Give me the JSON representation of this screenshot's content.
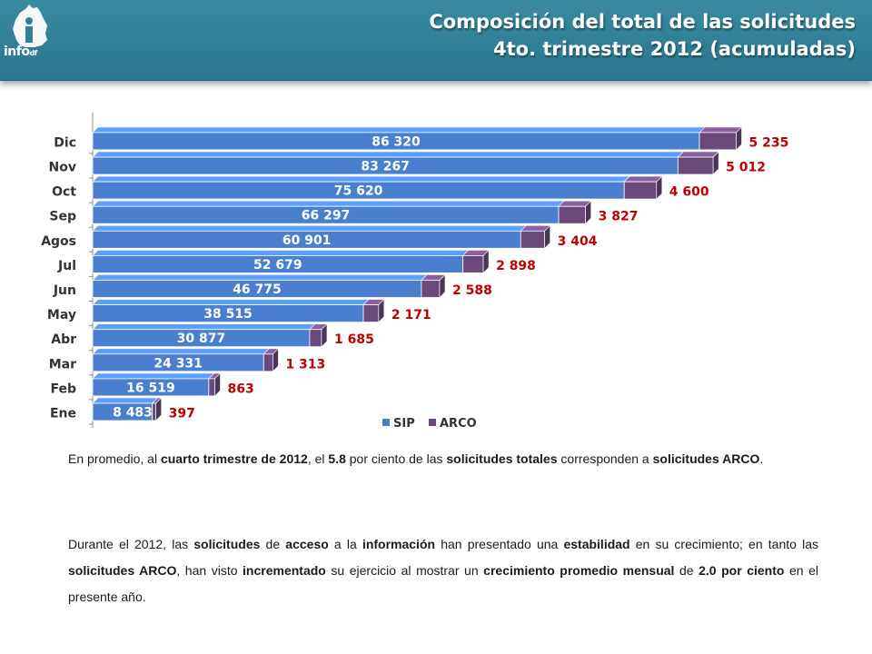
{
  "header": {
    "logo_label": "info df",
    "title_line1": "Composición del total de las solicitudes",
    "title_line2": "4to. trimestre 2012 (acumuladas)"
  },
  "chart_data": {
    "type": "bar",
    "orientation": "horizontal",
    "stacked": true,
    "categories": [
      "Ene",
      "Feb",
      "Mar",
      "Abr",
      "May",
      "Jun",
      "Jul",
      "Agos",
      "Sep",
      "Oct",
      "Nov",
      "Dic"
    ],
    "series": [
      {
        "name": "SIP",
        "color": "#4a7fd0",
        "values": [
          8483,
          16519,
          24331,
          30877,
          38515,
          46775,
          52679,
          60901,
          66297,
          75620,
          83267,
          86320
        ],
        "labels": [
          "8 483",
          "16 519",
          "24 331",
          "30 877",
          "38 515",
          "46 775",
          "52 679",
          "60 901",
          "66 297",
          "75 620",
          "83 267",
          "86 320"
        ]
      },
      {
        "name": "ARCO",
        "color": "#6a4a7c",
        "values": [
          397,
          863,
          1313,
          1685,
          2171,
          2588,
          2898,
          3404,
          3827,
          4600,
          5012,
          5235
        ],
        "labels": [
          "397",
          "863",
          "1 313",
          "1 685",
          "2 171",
          "2 588",
          "2 898",
          "3 404",
          "3 827",
          "4 600",
          "5 012",
          "5 235"
        ]
      }
    ],
    "label_color": "#c00000",
    "legend": "bottom",
    "style": "3d-bar"
  },
  "paragraphs": {
    "p1": [
      {
        "t": "En promedio, al ",
        "b": false
      },
      {
        "t": "cuarto trimestre de 2012",
        "b": true
      },
      {
        "t": ", el ",
        "b": false
      },
      {
        "t": "5.8",
        "b": true
      },
      {
        "t": " por ciento de las ",
        "b": false
      },
      {
        "t": "solicitudes totales",
        "b": true
      },
      {
        "t": " corresponden a ",
        "b": false
      },
      {
        "t": "solicitudes ARCO",
        "b": true
      },
      {
        "t": ".",
        "b": false
      }
    ],
    "p2": [
      {
        "t": "Durante el 2012, las ",
        "b": false
      },
      {
        "t": "solicitudes",
        "b": true
      },
      {
        "t": " de ",
        "b": false
      },
      {
        "t": "acceso",
        "b": true
      },
      {
        "t": " a la ",
        "b": false
      },
      {
        "t": "información",
        "b": true
      },
      {
        "t": " han presentado una ",
        "b": false
      },
      {
        "t": "estabilidad",
        "b": true
      },
      {
        "t": " en su crecimiento; en tanto las ",
        "b": false
      },
      {
        "t": "solicitudes ARCO",
        "b": true
      },
      {
        "t": ", han visto ",
        "b": false
      },
      {
        "t": "incrementado",
        "b": true
      },
      {
        "t": " su ejercicio al mostrar un ",
        "b": false
      },
      {
        "t": "crecimiento promedio mensual",
        "b": true
      },
      {
        "t": " de ",
        "b": false
      },
      {
        "t": "2.0 por ciento",
        "b": true
      },
      {
        "t": " en el presente año.",
        "b": false
      }
    ]
  }
}
